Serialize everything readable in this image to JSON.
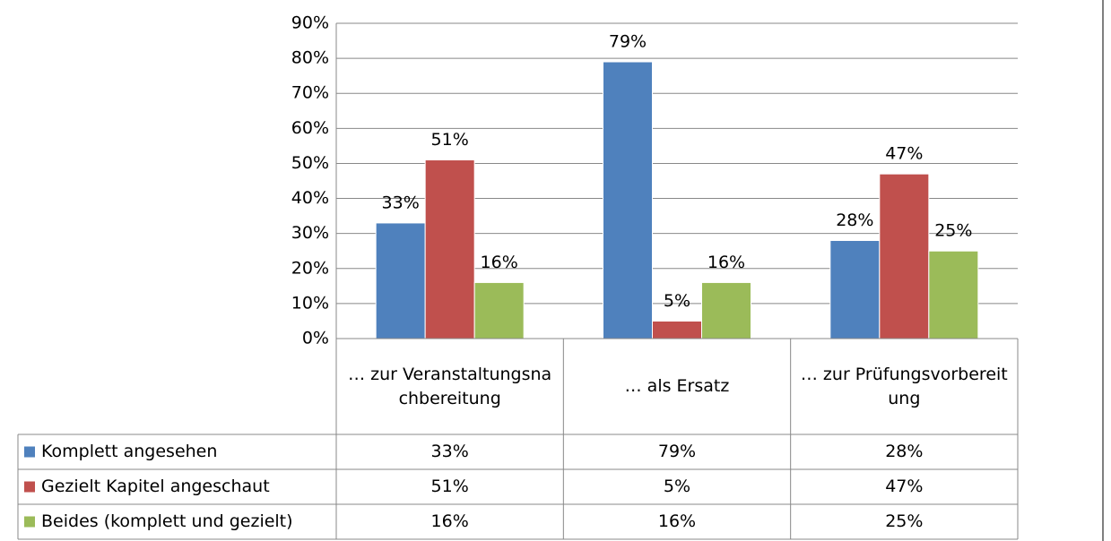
{
  "chart_data": {
    "type": "bar",
    "categories": [
      "… zur Veranstaltungsnachbereitung",
      "… als Ersatz",
      "… zur Prüfungsvorbereitung"
    ],
    "series": [
      {
        "name": "Komplett angesehen",
        "color": "#4f81bd",
        "values": [
          33,
          79,
          28
        ],
        "value_labels": [
          "33%",
          "79%",
          "28%"
        ]
      },
      {
        "name": "Gezielt Kapitel angeschaut",
        "color": "#c0504d",
        "values": [
          51,
          5,
          47
        ],
        "value_labels": [
          "51%",
          "5%",
          "47%"
        ]
      },
      {
        "name": "Beides (komplett und gezielt)",
        "color": "#9bbb59",
        "values": [
          16,
          16,
          25
        ],
        "value_labels": [
          "16%",
          "16%",
          "25%"
        ]
      }
    ],
    "ylim": [
      0,
      90
    ],
    "yticks": [
      {
        "value": 0,
        "label": "0%"
      },
      {
        "value": 10,
        "label": "10%"
      },
      {
        "value": 20,
        "label": "20%"
      },
      {
        "value": 30,
        "label": "30%"
      },
      {
        "value": 40,
        "label": "40%"
      },
      {
        "value": 50,
        "label": "50%"
      },
      {
        "value": 60,
        "label": "60%"
      },
      {
        "value": 70,
        "label": "70%"
      },
      {
        "value": 80,
        "label": "80%"
      },
      {
        "value": 90,
        "label": "90%"
      }
    ],
    "grid": true
  }
}
